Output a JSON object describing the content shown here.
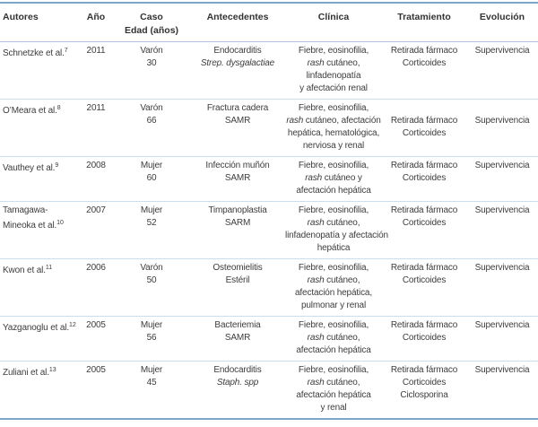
{
  "colors": {
    "border_strong": "#7ea6c8",
    "border_header": "#aec7de",
    "border_row": "#cbdeee",
    "text": "#3d3d3d",
    "header_text": "#333333"
  },
  "table": {
    "columns": [
      {
        "id": "autores",
        "lines": [
          "Autores"
        ]
      },
      {
        "id": "ano",
        "lines": [
          "Año"
        ]
      },
      {
        "id": "caso",
        "lines": [
          "Caso",
          "Edad (años)"
        ]
      },
      {
        "id": "antecedentes",
        "lines": [
          "Antecedentes"
        ]
      },
      {
        "id": "clinica",
        "lines": [
          "Clínica"
        ]
      },
      {
        "id": "tratamiento",
        "lines": [
          "Tratamiento"
        ]
      },
      {
        "id": "evolucion",
        "lines": [
          "Evolución"
        ]
      }
    ],
    "rows": [
      {
        "cells": [
          {
            "lines": [
              [
                {
                  "t": "Schnetzke et al."
                },
                {
                  "t": "7",
                  "sup": true
                }
              ]
            ]
          },
          {
            "lines": [
              [
                {
                  "t": "2011"
                }
              ]
            ]
          },
          {
            "lines": [
              [
                {
                  "t": "Varón"
                }
              ],
              [
                {
                  "t": "30"
                }
              ]
            ]
          },
          {
            "lines": [
              [
                {
                  "t": "Endocarditis"
                }
              ],
              [
                {
                  "t": "Strep. dysgalactiae",
                  "i": true
                }
              ]
            ]
          },
          {
            "lines": [
              [
                {
                  "t": "Fiebre, eosinofilia,"
                }
              ],
              [
                {
                  "t": "rash",
                  "i": true
                },
                {
                  "t": " cutáneo,"
                }
              ],
              [
                {
                  "t": "linfadenopatía"
                }
              ],
              [
                {
                  "t": "y afectación renal"
                }
              ]
            ]
          },
          {
            "lines": [
              [
                {
                  "t": "Retirada fármaco"
                }
              ],
              [
                {
                  "t": "Corticoides"
                }
              ]
            ]
          },
          {
            "lines": [
              [
                {
                  "t": "Supervivencia"
                }
              ]
            ]
          }
        ]
      },
      {
        "cells": [
          {
            "lines": [
              [
                {
                  "t": "O’Meara et al."
                },
                {
                  "t": "8",
                  "sup": true
                }
              ]
            ]
          },
          {
            "lines": [
              [
                {
                  "t": "2011"
                }
              ]
            ]
          },
          {
            "lines": [
              [
                {
                  "t": "Varón"
                }
              ],
              [
                {
                  "t": "66"
                }
              ]
            ]
          },
          {
            "lines": [
              [
                {
                  "t": "Fractura cadera"
                }
              ],
              [
                {
                  "t": "SAMR"
                }
              ]
            ]
          },
          {
            "lines": [
              [
                {
                  "t": "Fiebre, eosinofilia,"
                }
              ],
              [
                {
                  "t": "rash",
                  "i": true
                },
                {
                  "t": " cutáneo, afectación"
                }
              ],
              [
                {
                  "t": "hepática, hematológica,"
                }
              ],
              [
                {
                  "t": "nerviosa y renal"
                }
              ]
            ]
          },
          {
            "lines": [
              [],
              [
                {
                  "t": "Retirada fármaco"
                }
              ],
              [
                {
                  "t": "Corticoides"
                }
              ]
            ]
          },
          {
            "lines": [
              [],
              [
                {
                  "t": "Supervivencia"
                }
              ]
            ]
          }
        ]
      },
      {
        "cells": [
          {
            "lines": [
              [
                {
                  "t": "Vauthey et al."
                },
                {
                  "t": "9",
                  "sup": true
                }
              ]
            ]
          },
          {
            "lines": [
              [
                {
                  "t": "2008"
                }
              ]
            ]
          },
          {
            "lines": [
              [
                {
                  "t": "Mujer"
                }
              ],
              [
                {
                  "t": "60"
                }
              ]
            ]
          },
          {
            "lines": [
              [
                {
                  "t": "Infección muñón"
                }
              ],
              [
                {
                  "t": "SAMR"
                }
              ]
            ]
          },
          {
            "lines": [
              [
                {
                  "t": "Fiebre, eosinofilia,"
                }
              ],
              [
                {
                  "t": "rash",
                  "i": true
                },
                {
                  "t": " cutáneo y"
                }
              ],
              [
                {
                  "t": "afectación hepática"
                }
              ]
            ]
          },
          {
            "lines": [
              [
                {
                  "t": "Retirada fármaco"
                }
              ],
              [
                {
                  "t": "Corticoides"
                }
              ]
            ]
          },
          {
            "lines": [
              [
                {
                  "t": "Supervivencia"
                }
              ]
            ]
          }
        ]
      },
      {
        "cells": [
          {
            "lines": [
              [
                {
                  "t": "Tamagawa-"
                }
              ],
              [
                {
                  "t": "Mineoka et al."
                },
                {
                  "t": "10",
                  "sup": true
                }
              ]
            ]
          },
          {
            "lines": [
              [
                {
                  "t": "2007"
                }
              ]
            ]
          },
          {
            "lines": [
              [
                {
                  "t": "Mujer"
                }
              ],
              [
                {
                  "t": "52"
                }
              ]
            ]
          },
          {
            "lines": [
              [
                {
                  "t": "Timpanoplastia"
                }
              ],
              [
                {
                  "t": "SARM"
                }
              ]
            ]
          },
          {
            "lines": [
              [
                {
                  "t": "Fiebre, eosinofilia,"
                }
              ],
              [
                {
                  "t": "rash",
                  "i": true
                },
                {
                  "t": " cutáneo,"
                }
              ],
              [
                {
                  "t": "linfadenopatía y afectación"
                }
              ],
              [
                {
                  "t": "hepática"
                }
              ]
            ]
          },
          {
            "lines": [
              [
                {
                  "t": "Retirada fármaco"
                }
              ],
              [
                {
                  "t": "Corticoides"
                }
              ]
            ]
          },
          {
            "lines": [
              [
                {
                  "t": "Supervivencia"
                }
              ]
            ]
          }
        ]
      },
      {
        "cells": [
          {
            "lines": [
              [
                {
                  "t": "Kwon et al."
                },
                {
                  "t": "11",
                  "sup": true
                }
              ]
            ]
          },
          {
            "lines": [
              [
                {
                  "t": "2006"
                }
              ]
            ]
          },
          {
            "lines": [
              [
                {
                  "t": "Varón"
                }
              ],
              [
                {
                  "t": "50"
                }
              ]
            ]
          },
          {
            "lines": [
              [
                {
                  "t": "Osteomielitis"
                }
              ],
              [
                {
                  "t": "Estéril"
                }
              ]
            ]
          },
          {
            "lines": [
              [
                {
                  "t": "Fiebre, eosinofilia,"
                }
              ],
              [
                {
                  "t": "rash",
                  "i": true
                },
                {
                  "t": " cutáneo,"
                }
              ],
              [
                {
                  "t": "afectación hepática,"
                }
              ],
              [
                {
                  "t": "pulmonar y renal"
                }
              ]
            ]
          },
          {
            "lines": [
              [
                {
                  "t": "Retirada fármaco"
                }
              ],
              [
                {
                  "t": "Corticoides"
                }
              ]
            ]
          },
          {
            "lines": [
              [
                {
                  "t": "Supervivencia"
                }
              ]
            ]
          }
        ]
      },
      {
        "cells": [
          {
            "lines": [
              [
                {
                  "t": "Yazganoglu et al."
                },
                {
                  "t": "12",
                  "sup": true
                }
              ]
            ]
          },
          {
            "lines": [
              [
                {
                  "t": "2005"
                }
              ]
            ]
          },
          {
            "lines": [
              [
                {
                  "t": "Mujer"
                }
              ],
              [
                {
                  "t": "56"
                }
              ]
            ]
          },
          {
            "lines": [
              [
                {
                  "t": "Bacteriemia"
                }
              ],
              [
                {
                  "t": "SAMR"
                }
              ]
            ]
          },
          {
            "lines": [
              [
                {
                  "t": "Fiebre, eosinofilia,"
                }
              ],
              [
                {
                  "t": "rash",
                  "i": true
                },
                {
                  "t": " cutáneo,"
                }
              ],
              [
                {
                  "t": "afectación hepática"
                }
              ]
            ]
          },
          {
            "lines": [
              [
                {
                  "t": "Retirada fármaco"
                }
              ],
              [
                {
                  "t": "Corticoides"
                }
              ]
            ]
          },
          {
            "lines": [
              [
                {
                  "t": "Supervivencia"
                }
              ]
            ]
          }
        ]
      },
      {
        "cells": [
          {
            "lines": [
              [
                {
                  "t": "Zuliani et al."
                },
                {
                  "t": "13",
                  "sup": true
                }
              ]
            ]
          },
          {
            "lines": [
              [
                {
                  "t": "2005"
                }
              ]
            ]
          },
          {
            "lines": [
              [
                {
                  "t": "Mujer"
                }
              ],
              [
                {
                  "t": "45"
                }
              ]
            ]
          },
          {
            "lines": [
              [
                {
                  "t": "Endocarditis"
                }
              ],
              [
                {
                  "t": "Staph. spp",
                  "i": true
                }
              ]
            ]
          },
          {
            "lines": [
              [
                {
                  "t": "Fiebre, eosinofilia,"
                }
              ],
              [
                {
                  "t": "rash",
                  "i": true
                },
                {
                  "t": " cutáneo,"
                }
              ],
              [
                {
                  "t": "afectación hepática"
                }
              ],
              [
                {
                  "t": "y renal"
                }
              ]
            ]
          },
          {
            "lines": [
              [
                {
                  "t": "Retirada fármaco"
                }
              ],
              [
                {
                  "t": "Corticoides"
                }
              ],
              [
                {
                  "t": "Ciclosporina"
                }
              ]
            ]
          },
          {
            "lines": [
              [
                {
                  "t": "Supervivencia"
                }
              ]
            ]
          }
        ]
      }
    ]
  }
}
